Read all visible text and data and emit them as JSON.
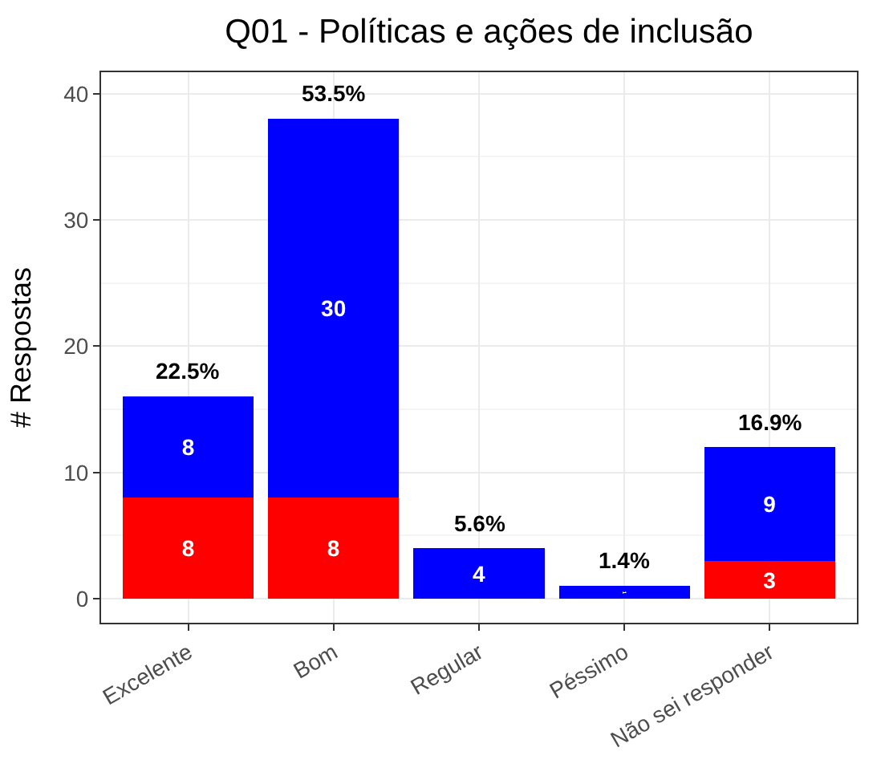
{
  "chart_data": {
    "type": "bar",
    "title": "Q01 - Políticas e ações de inclusão",
    "ylabel": "# Respostas",
    "categories": [
      "Excelente",
      "Bom",
      "Regular",
      "Péssimo",
      "Não sei responder"
    ],
    "stacked": true,
    "series": [
      {
        "color": "#ff0000",
        "values": [
          8,
          8,
          null,
          null,
          3
        ]
      },
      {
        "color": "#0000ff",
        "values": [
          8,
          30,
          4,
          1,
          9
        ]
      }
    ],
    "data_labels": true,
    "annotations": [
      {
        "text": "22.5%",
        "x": "Excelente",
        "y": 16
      },
      {
        "text": "53.5%",
        "x": "Bom",
        "y": 38
      },
      {
        "text": "5.6%",
        "x": "Regular",
        "y": 4
      },
      {
        "text": "1.4%",
        "x": "Péssimo",
        "y": 1
      },
      {
        "text": "16.9%",
        "x": "Não sei responder",
        "y": 12
      }
    ],
    "ylim": [
      -1.9,
      41.7
    ],
    "yticks": [
      0,
      10,
      20,
      30,
      40
    ],
    "grid": true
  }
}
